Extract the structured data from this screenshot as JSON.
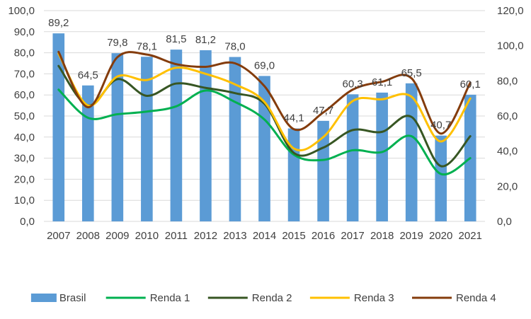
{
  "chart_data": {
    "type": "bar",
    "categories": [
      "2007",
      "2008",
      "2009",
      "2010",
      "2011",
      "2012",
      "2013",
      "2014",
      "2015",
      "2016",
      "2017",
      "2018",
      "2019",
      "2020",
      "2021"
    ],
    "title": "",
    "xlabel": "",
    "ylabel": "",
    "ylim": [
      0,
      100
    ],
    "y2lim": [
      0,
      120
    ],
    "yticks": [
      "0,0",
      "10,0",
      "20,0",
      "30,0",
      "40,0",
      "50,0",
      "60,0",
      "70,0",
      "80,0",
      "90,0",
      "100,0"
    ],
    "y2ticks": [
      "0,0",
      "20,0",
      "40,0",
      "60,0",
      "80,0",
      "100,0",
      "120,0"
    ],
    "grid": true,
    "legend_position": "bottom",
    "series": [
      {
        "name": "Brasil",
        "type": "bar",
        "axis": "left",
        "color": "#5B9BD5",
        "values": [
          89.2,
          64.5,
          79.8,
          78.1,
          81.5,
          81.2,
          78.0,
          69.0,
          44.1,
          47.7,
          60.3,
          61.1,
          65.5,
          40.7,
          60.1
        ],
        "labels": [
          "89,2",
          "64,5",
          "79,8",
          "78,1",
          "81,5",
          "81,2",
          "78,0",
          "69,0",
          "44,1",
          "47,7",
          "60,3",
          "61,1",
          "65,5",
          "40,7",
          "60,1"
        ]
      },
      {
        "name": "Renda 1",
        "type": "line",
        "axis": "right",
        "color": "#00B050",
        "values": [
          75,
          59,
          61,
          62.5,
          65.5,
          74.5,
          68,
          58,
          38,
          35,
          40.5,
          39.5,
          48.5,
          27,
          36
        ]
      },
      {
        "name": "Renda 2",
        "type": "line",
        "axis": "right",
        "color": "#375623",
        "values": [
          88.5,
          66,
          81,
          71.5,
          78.5,
          76,
          73,
          67,
          39,
          42,
          52,
          51,
          59.5,
          31.5,
          48.5
        ]
      },
      {
        "name": "Renda 3",
        "type": "line",
        "axis": "right",
        "color": "#FFC000",
        "values": [
          95.5,
          66,
          82.5,
          80.5,
          87.5,
          84,
          78,
          68,
          41.5,
          48,
          68.5,
          69.5,
          71,
          45.5,
          70
        ]
      },
      {
        "name": "Renda 4",
        "type": "line",
        "axis": "right",
        "color": "#843C0C",
        "values": [
          96.5,
          65,
          93.5,
          95,
          89.5,
          88,
          90,
          77,
          52.5,
          62,
          75,
          79.5,
          81.5,
          50,
          79
        ]
      }
    ]
  }
}
